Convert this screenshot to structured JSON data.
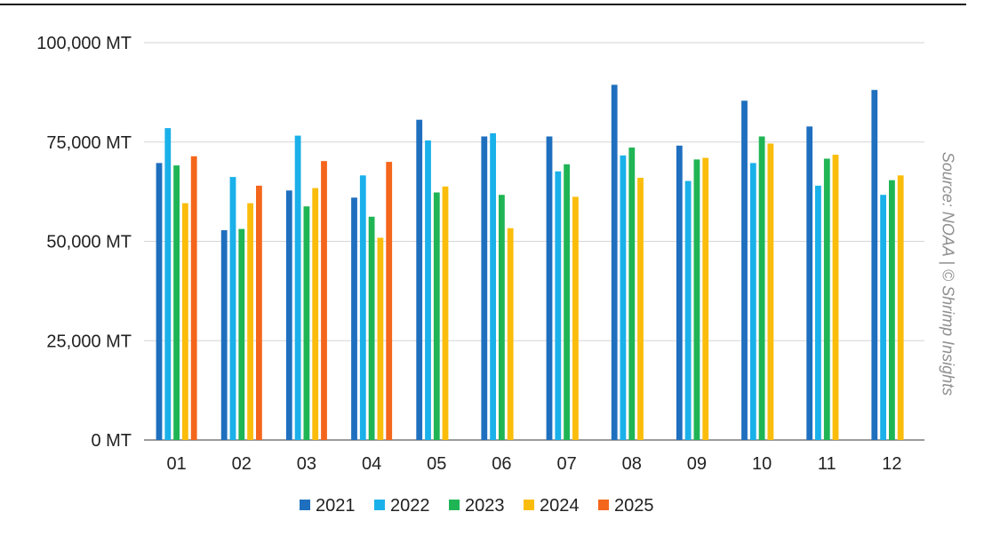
{
  "chart_data": {
    "type": "bar",
    "title": "",
    "xlabel": "",
    "ylabel": "",
    "ylim": [
      0,
      100000
    ],
    "y_ticks": [
      0,
      25000,
      50000,
      75000,
      100000
    ],
    "y_tick_labels": [
      "0 MT",
      "25,000 MT",
      "50,000 MT",
      "75,000 MT",
      "100,000 MT"
    ],
    "grid": "horizontal",
    "legend_position": "bottom",
    "categories": [
      "01",
      "02",
      "03",
      "04",
      "05",
      "06",
      "07",
      "08",
      "09",
      "10",
      "11",
      "12"
    ],
    "series": [
      {
        "name": "2021",
        "color": "#1f6fbf",
        "values": [
          69700,
          52800,
          62800,
          61000,
          80600,
          76400,
          76400,
          89400,
          74100,
          85400,
          78900,
          88100
        ]
      },
      {
        "name": "2022",
        "color": "#1ab0ea",
        "values": [
          78500,
          66200,
          76600,
          66600,
          75400,
          77200,
          67600,
          71600,
          65200,
          69700,
          64000,
          61700
        ]
      },
      {
        "name": "2023",
        "color": "#1fb555",
        "values": [
          69100,
          53100,
          58800,
          56200,
          62300,
          61700,
          69400,
          73600,
          70600,
          76400,
          70800,
          65400
        ]
      },
      {
        "name": "2024",
        "color": "#fbbd0b",
        "values": [
          59600,
          59600,
          63400,
          50900,
          63800,
          53300,
          61200,
          66000,
          71000,
          74600,
          71800,
          66600
        ]
      },
      {
        "name": "2025",
        "color": "#f4661c",
        "values": [
          71400,
          64000,
          70200,
          70000,
          null,
          null,
          null,
          null,
          null,
          null,
          null,
          null
        ]
      }
    ],
    "annotation": "Source: NOAA | © Shrimp Insights"
  }
}
